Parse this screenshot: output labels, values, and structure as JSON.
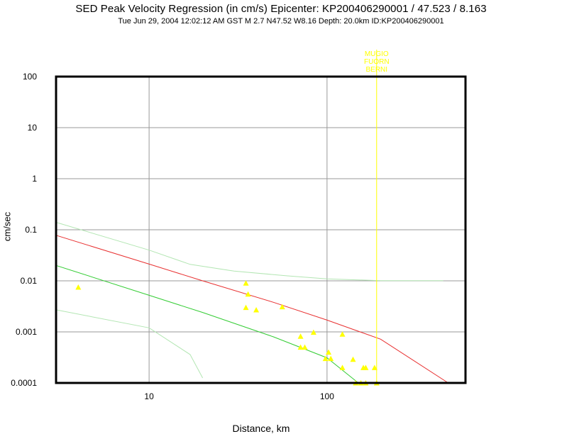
{
  "chart_data": {
    "type": "scatter",
    "title": "SED Peak Velocity Regression (in cm/s) Epicenter: KP200406290001 / 47.523 / 8.163",
    "subtitle": "Tue Jun 29, 2004 12:02:12 AM GST    M 2.7    N47.52 W8.16   Depth: 20.0km    ID:KP200406290001",
    "xlabel": "Distance, km",
    "ylabel": "cm/sec",
    "xscale": "log",
    "yscale": "log",
    "xlim": [
      3,
      600
    ],
    "ylim": [
      0.0001,
      100
    ],
    "grid": true,
    "xticks": [
      {
        "v": 10,
        "label": "10"
      },
      {
        "v": 100,
        "label": "100"
      }
    ],
    "yticks": [
      {
        "v": 100,
        "label": "100"
      },
      {
        "v": 10,
        "label": "10"
      },
      {
        "v": 1,
        "label": "1"
      },
      {
        "v": 0.1,
        "label": "0.1"
      },
      {
        "v": 0.01,
        "label": "0.01"
      },
      {
        "v": 0.001,
        "label": "0.001"
      },
      {
        "v": 0.0001,
        "label": "0.0001"
      }
    ],
    "regression_curves": [
      {
        "color": "#e83030",
        "x": [
          3,
          10,
          20,
          50,
          100,
          200,
          480
        ],
        "y": [
          0.078,
          0.0213,
          0.01,
          0.0038,
          0.0017,
          0.00072,
          0.0001
        ]
      },
      {
        "color": "#33cc33",
        "x": [
          3,
          10,
          20,
          50,
          100,
          150
        ],
        "y": [
          0.02,
          0.0052,
          0.0024,
          0.0008,
          0.00031,
          0.0001
        ]
      },
      {
        "color": "#b3e6b3",
        "x": [
          3,
          10,
          17,
          30,
          60,
          100,
          200,
          450
        ],
        "y": [
          0.14,
          0.04,
          0.021,
          0.0155,
          0.0125,
          0.0109,
          0.0101,
          0.0101
        ]
      },
      {
        "color": "#b3e6b3",
        "x": [
          3,
          10,
          17,
          20
        ],
        "y": [
          0.0027,
          0.0012,
          0.00036,
          0.000125
        ]
      }
    ],
    "observations": {
      "color": "#ffff00",
      "points": [
        {
          "x": 4,
          "y": 0.0075
        },
        {
          "x": 35,
          "y": 0.009
        },
        {
          "x": 36,
          "y": 0.0055
        },
        {
          "x": 35,
          "y": 0.003
        },
        {
          "x": 40,
          "y": 0.0027
        },
        {
          "x": 56,
          "y": 0.0031
        },
        {
          "x": 71,
          "y": 0.00082
        },
        {
          "x": 84,
          "y": 0.00098
        },
        {
          "x": 71,
          "y": 0.0005
        },
        {
          "x": 75,
          "y": 0.0005
        },
        {
          "x": 122,
          "y": 0.0009
        },
        {
          "x": 102,
          "y": 0.0004
        },
        {
          "x": 98,
          "y": 0.0003
        },
        {
          "x": 105,
          "y": 0.0003
        },
        {
          "x": 140,
          "y": 0.00029
        },
        {
          "x": 122,
          "y": 0.0002
        },
        {
          "x": 160,
          "y": 0.0002
        },
        {
          "x": 165,
          "y": 0.0002
        },
        {
          "x": 185,
          "y": 0.0002
        },
        {
          "x": 145,
          "y": 0.0001
        },
        {
          "x": 155,
          "y": 0.0001
        },
        {
          "x": 165,
          "y": 0.0001
        },
        {
          "x": 190,
          "y": 0.0001
        }
      ]
    },
    "station_marker": {
      "x": 190,
      "color": "#ffff00",
      "labels": [
        "MUGIO",
        "FUORN",
        "BERNI"
      ]
    }
  }
}
